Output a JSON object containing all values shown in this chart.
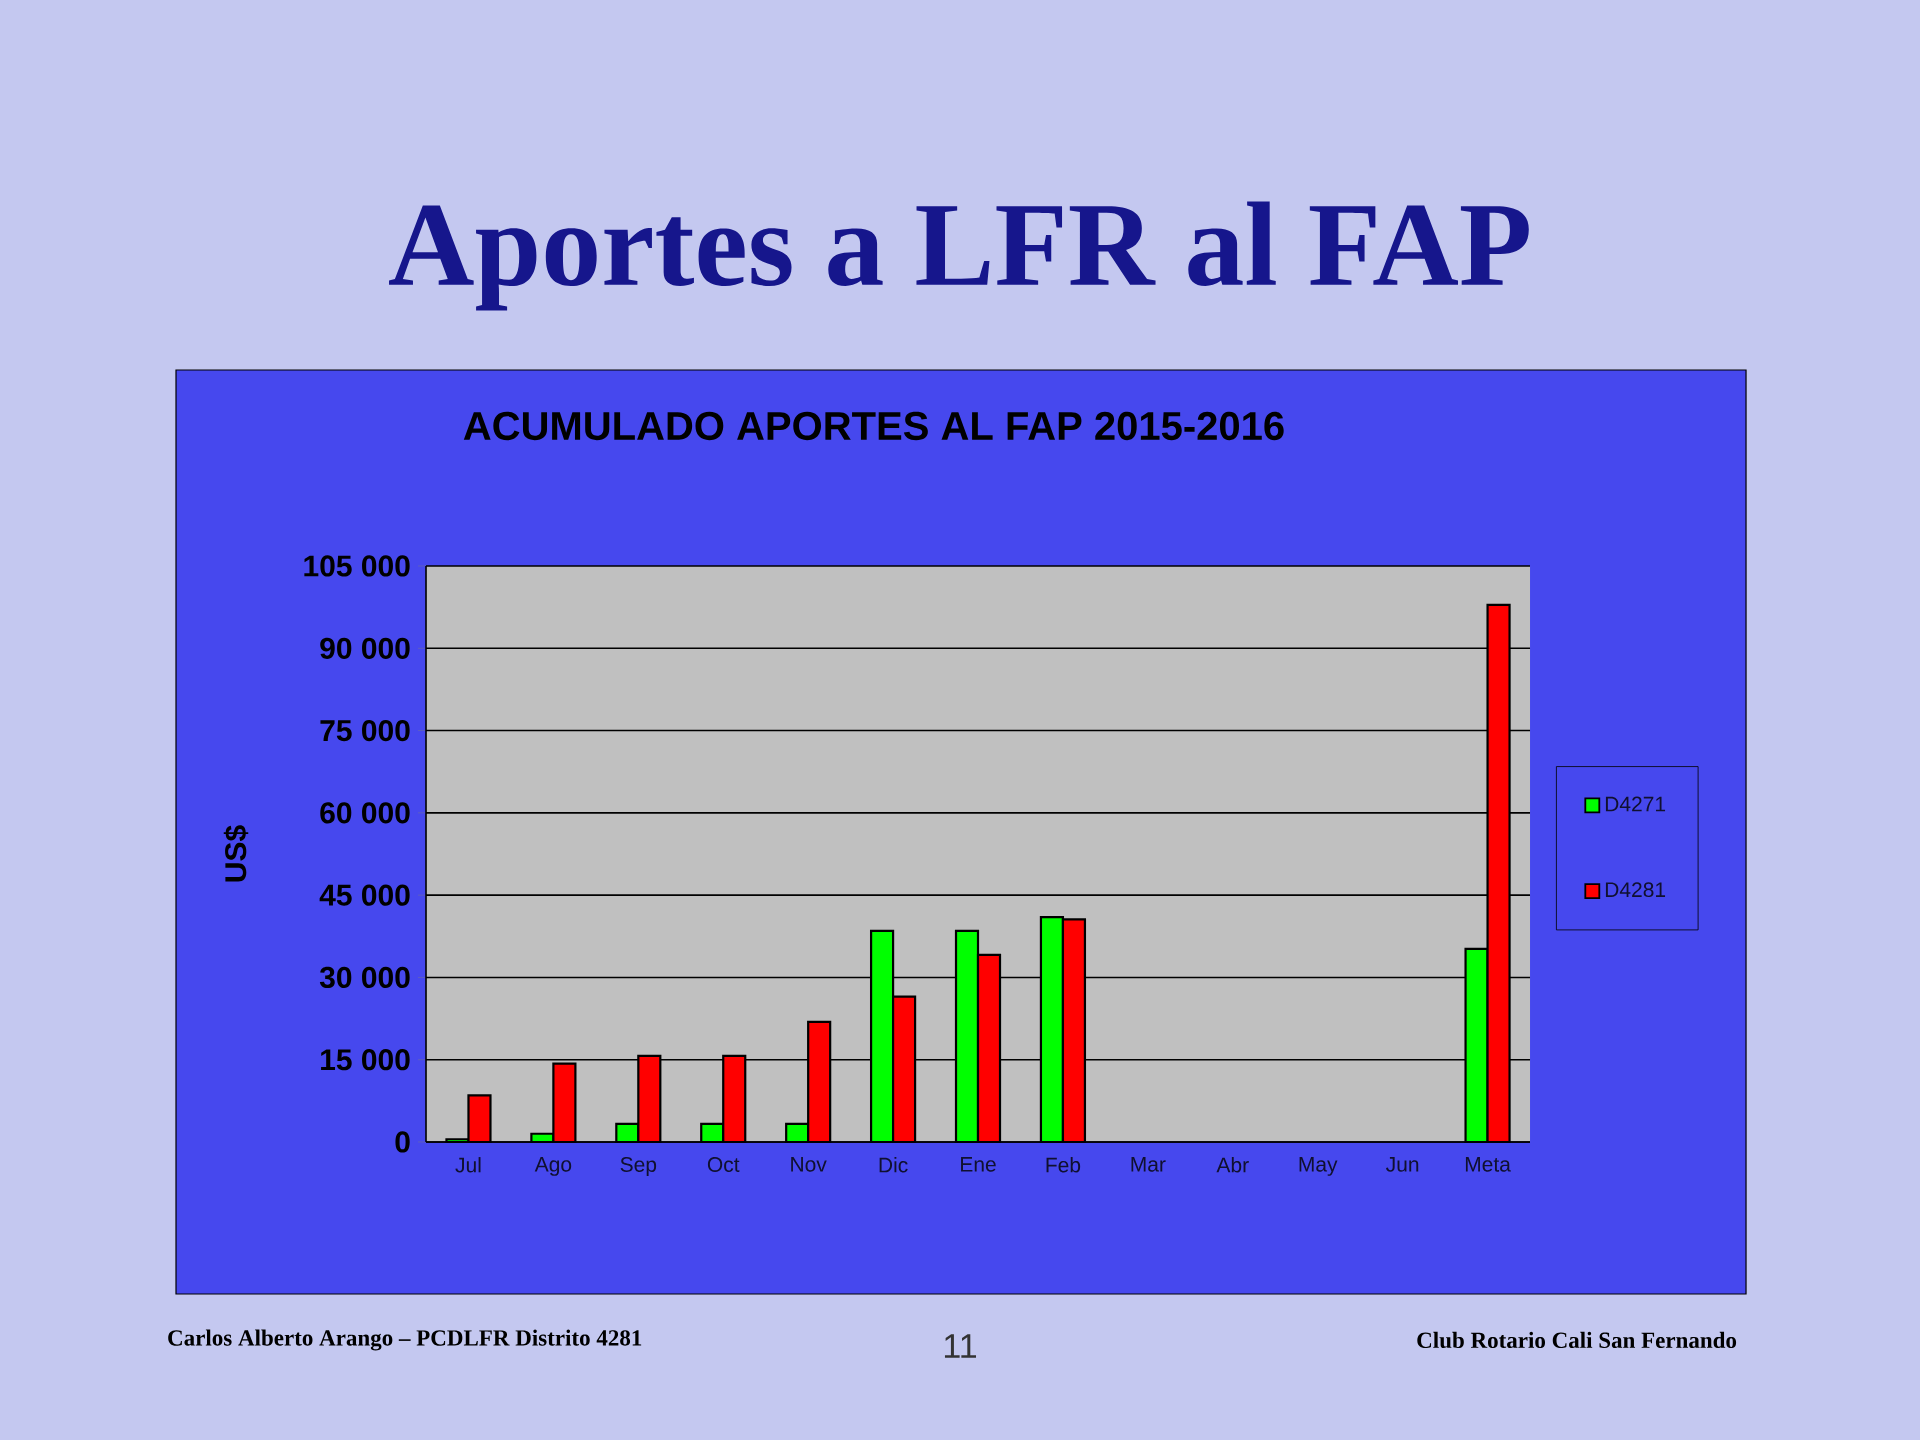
{
  "chart_data": {
    "type": "bar",
    "title": "Aportes a LFR al FAP",
    "subtitle": "ACUMULADO APORTES AL FAP 2015-2016",
    "ylabel": "US$",
    "categories": [
      "Jul",
      "Ago",
      "Sep",
      "Oct",
      "Nov",
      "Dic",
      "Ene",
      "Feb",
      "Mar",
      "Abr",
      "May",
      "Jun",
      "Meta"
    ],
    "series": [
      {
        "name": "D4271",
        "color": "#00ff00",
        "values": [
          500,
          1500,
          3300,
          3300,
          3300,
          38500,
          38500,
          41000,
          null,
          null,
          null,
          null,
          35200
        ]
      },
      {
        "name": "D4281",
        "color": "#ff0000",
        "values": [
          8500,
          14300,
          15700,
          15700,
          21900,
          26500,
          34100,
          40600,
          null,
          null,
          null,
          null,
          97900
        ]
      }
    ],
    "ylim": [
      0,
      105000
    ],
    "yticks": [
      0,
      {
        "value": 15000,
        "label": "15 000"
      },
      {
        "value": 30000,
        "label": "30 000"
      },
      {
        "value": 45000,
        "label": "45 000"
      },
      {
        "value": 60000,
        "label": "60 000"
      },
      {
        "value": 75000,
        "label": "75 000"
      },
      {
        "value": 90000,
        "label": "90 000"
      },
      {
        "value": 105000,
        "label": "105 000"
      }
    ],
    "grid": "y",
    "legend": "right",
    "annotations": [
      "Carlos Alberto Arango – PCDLFR Distrito 4281",
      "11",
      "Club Rotario Cali San Fernando"
    ]
  }
}
